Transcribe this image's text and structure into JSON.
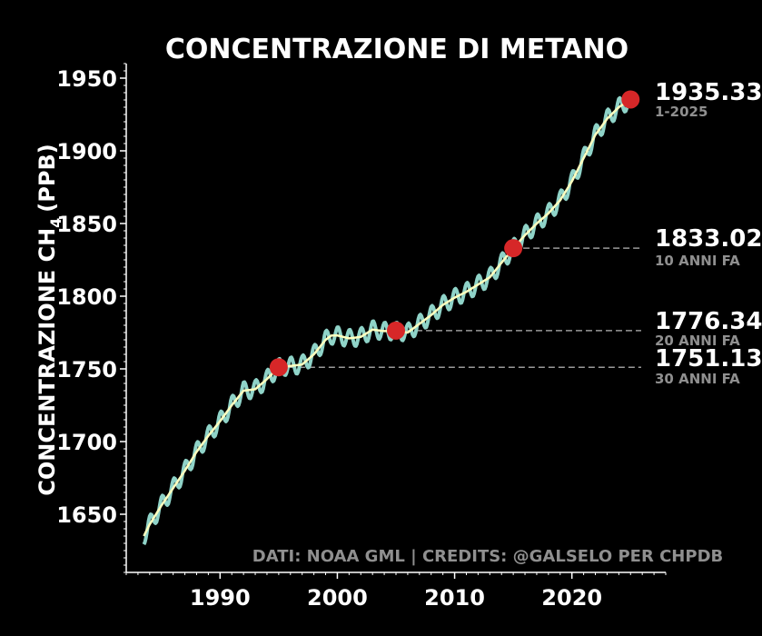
{
  "chart_data": {
    "type": "line",
    "title": "CONCENTRAZIONE DI METANO",
    "ylabel": "CONCENTRAZIONE CH",
    "ylabel_subscript": "4",
    "ylabel_unit": "(PPB)",
    "xlabel": "",
    "credits": "DATI: NOAA GML | CREDITS: @GALSELO PER CHPDB",
    "xlim": [
      1982,
      2028
    ],
    "ylim": [
      1610,
      1960
    ],
    "x_ticks": [
      1990,
      2000,
      2010,
      2020
    ],
    "y_ticks": [
      1650,
      1700,
      1750,
      1800,
      1850,
      1900,
      1950
    ],
    "grid": false,
    "legend": "none",
    "colors": {
      "background": "#000000",
      "monthly": "#8fd3c8",
      "trend": "#ffffbf",
      "marker": "#d62728",
      "reference_line": "#9a9a9a",
      "text": "#ffffff",
      "muted_text": "#8f8f8f"
    },
    "series": [
      {
        "x": [
          1983.5,
          1984,
          1985,
          1986,
          1987,
          1988,
          1989,
          1990,
          1991,
          1992,
          1993,
          1994,
          1995,
          1996,
          1997,
          1998,
          1999,
          1999.5,
          2000,
          2001,
          2002,
          2003,
          2004,
          2005,
          2006,
          2007,
          2008,
          2009,
          2010,
          2011,
          2012,
          2013,
          2014,
          2015,
          2016,
          2017,
          2018,
          2019,
          2020,
          2021,
          2022,
          2023,
          2024,
          2025
        ],
        "values": [
          1635,
          1643,
          1656,
          1668,
          1680,
          1693,
          1704,
          1714,
          1725,
          1735,
          1736,
          1743,
          1751,
          1752,
          1753,
          1760,
          1770,
          1773,
          1773,
          1771,
          1772,
          1777,
          1776,
          1776,
          1775,
          1781,
          1787,
          1794,
          1799,
          1803,
          1808,
          1813,
          1823,
          1833,
          1842,
          1850,
          1857,
          1866,
          1879,
          1895,
          1911,
          1922,
          1930,
          1935.33
        ]
      }
    ],
    "seasonal_amplitude": 6,
    "annotations": [
      {
        "year": 2025,
        "value": 1935.33,
        "label": "1935.33",
        "sublabel": "1-2025",
        "guide": false
      },
      {
        "year": 2015,
        "value": 1833.02,
        "label": "1833.02",
        "sublabel": "10 ANNI FA",
        "guide": true
      },
      {
        "year": 2005,
        "value": 1776.34,
        "label": "1776.34",
        "sublabel": "20 ANNI FA",
        "guide": true
      },
      {
        "year": 1995,
        "value": 1751.13,
        "label": "1751.13",
        "sublabel": "30 ANNI FA",
        "guide": true
      }
    ]
  }
}
